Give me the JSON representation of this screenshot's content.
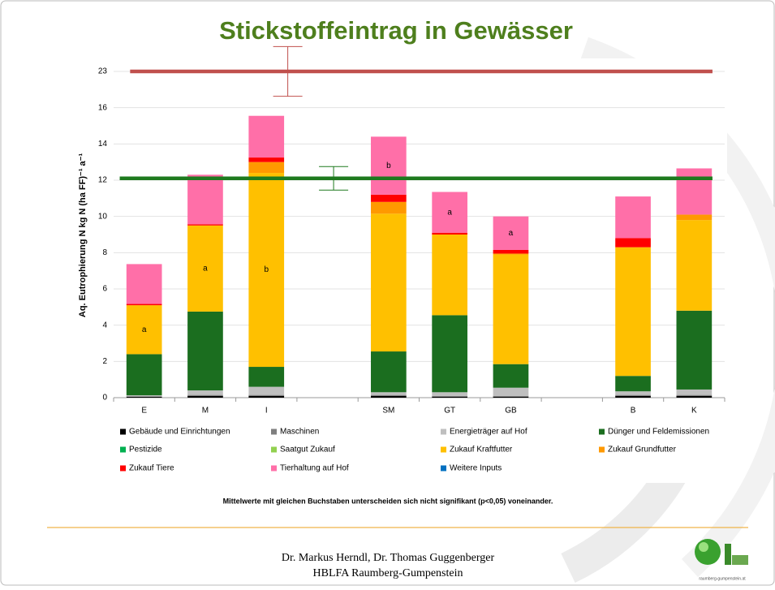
{
  "chart_data": {
    "type": "stacked_bar",
    "title": "Stickstoffeintrag in Gewässer",
    "y_label": "Aq. Eutrophierung N kg N (ha FF)⁻¹ a⁻¹",
    "categories": [
      "E",
      "M",
      "I",
      null,
      "SM",
      "GT",
      "GB",
      null,
      "B",
      "K"
    ],
    "ylim": [
      0,
      23
    ],
    "yticks": [
      0,
      2,
      4,
      6,
      8,
      10,
      12,
      14,
      16,
      23
    ],
    "grid": true,
    "series": [
      {
        "name": "Gebäude und Einrichtungen",
        "color": "#000000",
        "values": [
          0.05,
          0.1,
          0.1,
          null,
          0.1,
          0.05,
          0.05,
          null,
          0.1,
          0.1
        ]
      },
      {
        "name": "Maschinen",
        "color": "#7f7f7f",
        "values": [
          0.03,
          0.05,
          0.05,
          null,
          0.05,
          0.05,
          0.05,
          null,
          0.05,
          0.05
        ]
      },
      {
        "name": "Energieträger auf Hof",
        "color": "#bfbfbf",
        "values": [
          0.05,
          0.25,
          0.45,
          null,
          0.15,
          0.2,
          0.45,
          null,
          0.2,
          0.3
        ]
      },
      {
        "name": "Dünger und Feldemissionen",
        "color": "#1b6e1f",
        "values": [
          2.27,
          4.35,
          1.1,
          null,
          2.25,
          4.25,
          1.3,
          null,
          0.85,
          4.35
        ]
      },
      {
        "name": "Pestizide",
        "color": "#00b050",
        "values": [
          0,
          0,
          0,
          null,
          0,
          0,
          0,
          null,
          0,
          0
        ]
      },
      {
        "name": "Saatgut Zukauf",
        "color": "#92d050",
        "values": [
          0,
          0,
          0,
          null,
          0,
          0,
          0,
          null,
          0,
          0
        ]
      },
      {
        "name": "Zukauf Kraftfutter",
        "color": "#ffc000",
        "values": [
          2.7,
          4.75,
          10.7,
          null,
          7.6,
          4.45,
          6.05,
          null,
          7.1,
          5.0
        ],
        "labels": [
          "a",
          "a",
          "b",
          null,
          null,
          null,
          null,
          null,
          null,
          null
        ]
      },
      {
        "name": "Zukauf Grundfutter",
        "color": "#ff9900",
        "values": [
          0,
          0,
          0.6,
          null,
          0.65,
          0,
          0.05,
          null,
          0,
          0.3
        ]
      },
      {
        "name": "Zukauf Tiere",
        "color": "#ff0000",
        "values": [
          0.07,
          0.07,
          0.25,
          null,
          0.4,
          0.1,
          0.2,
          null,
          0.5,
          0
        ]
      },
      {
        "name": "Tierhaltung auf Hof",
        "color": "#ff6fa8",
        "values": [
          2.2,
          2.73,
          2.3,
          null,
          3.2,
          2.25,
          1.85,
          null,
          2.3,
          2.55
        ],
        "labels": [
          null,
          null,
          null,
          null,
          "b",
          "a",
          "a",
          null,
          null,
          null
        ]
      },
      {
        "name": "Weitere Inputs",
        "color": "#0070c0",
        "values": [
          0,
          0,
          0,
          null,
          0,
          0,
          0,
          null,
          0,
          0
        ]
      }
    ],
    "reference_lines": [
      {
        "value": 23,
        "error": 4.8,
        "color": "#c0504d"
      },
      {
        "value": 12.1,
        "error": 0.65,
        "color": "#1e7a1e"
      }
    ],
    "footnote": "Mittelwerte mit gleichen Buchstaben unterscheiden sich nicht signifikant (p<0,05) voneinander."
  },
  "footer": {
    "authors": "Dr. Markus Herndl, Dr. Thomas Guggenberger",
    "institution": "HBLFA Raumberg-Gumpenstein",
    "logo_text": "raumberg-gumpenstein.at"
  }
}
